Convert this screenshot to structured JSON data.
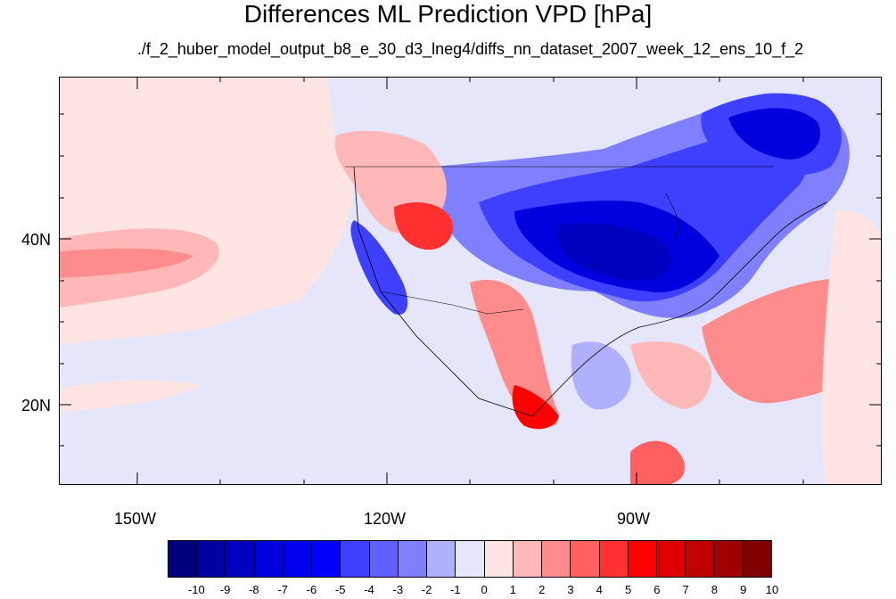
{
  "title": "Differences ML Prediction VPD [hPa]",
  "subtitle": "./f_2_huber_model_output_b8_e_30_d3_lneg4/diffs_nn_dataset_2007_week_12_ens_10_f_2",
  "axes": {
    "lat_labels": [
      "40N",
      "20N"
    ],
    "lon_labels": [
      "150W",
      "120W",
      "90W"
    ]
  },
  "colorbar": {
    "labels": [
      "-10",
      "-9",
      "-8",
      "-7",
      "-6",
      "-5",
      "-4",
      "-3",
      "-2",
      "-1",
      "0",
      "1",
      "2",
      "3",
      "4",
      "5",
      "6",
      "7",
      "8",
      "9",
      "10"
    ],
    "colors": [
      "#00007f",
      "#00009f",
      "#0000bf",
      "#0000df",
      "#0000ef",
      "#0000ff",
      "#3f3fff",
      "#6060ff",
      "#8080ff",
      "#b0b0ff",
      "#e6e6fa",
      "#ffe4e4",
      "#ffb8b8",
      "#ff8c8c",
      "#ff6060",
      "#ff3030",
      "#ff0000",
      "#df0000",
      "#bf0000",
      "#9f0000",
      "#800000"
    ]
  },
  "legend": {
    "neutral_color": "#e6e6fa",
    "light_red": "#ffe0e0"
  }
}
